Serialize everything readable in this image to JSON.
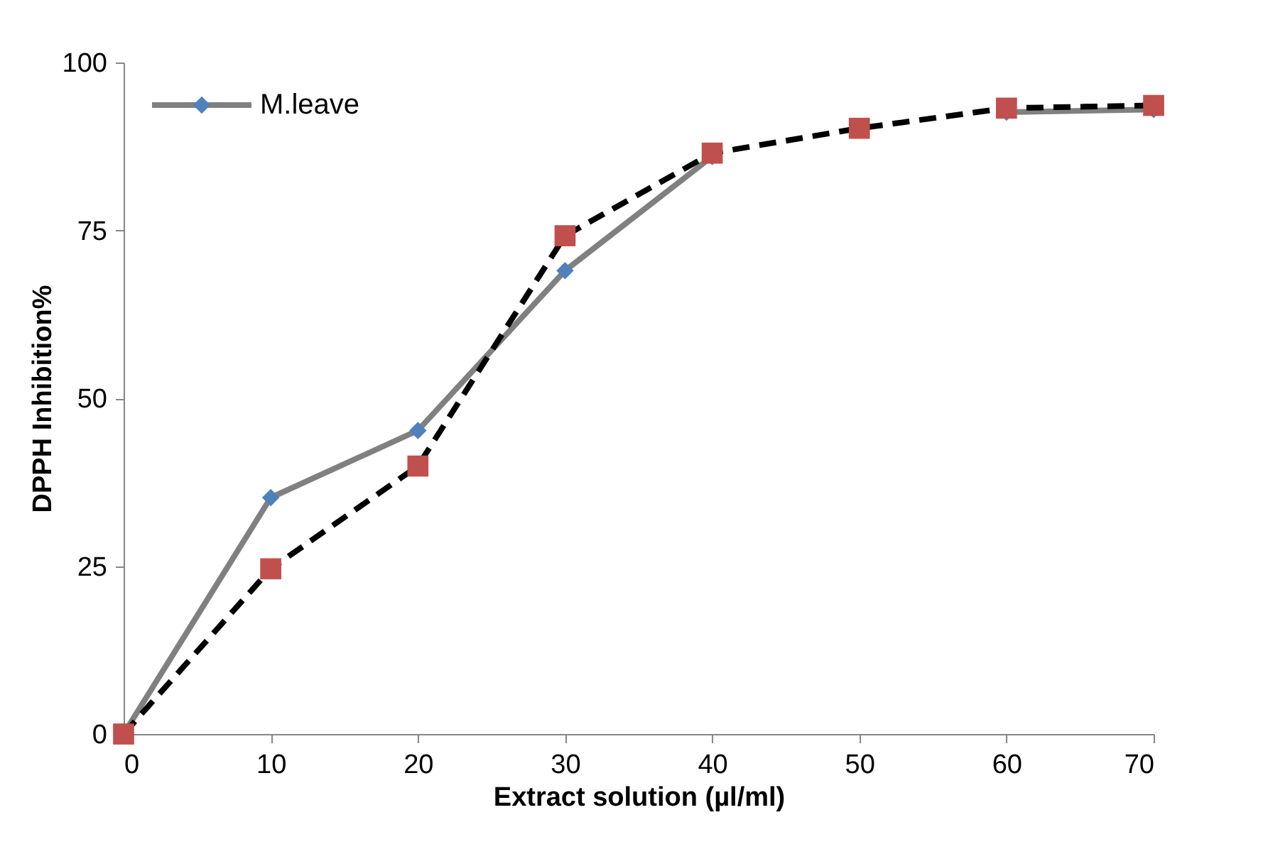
{
  "chart_data": {
    "type": "line",
    "xlabel": "Extract solution (µl/ml)",
    "ylabel": "DPPH Inhibition%",
    "x": [
      0,
      10,
      20,
      30,
      40,
      50,
      60,
      70
    ],
    "series": [
      {
        "name": "M.leave",
        "color": "#808080",
        "colors": [
          "#4f81bd",
          "#4f81bd",
          "#4f81bd",
          "#4f81bd",
          "#4f81bd",
          "#4f81bd",
          "#4f81bd",
          "#4f81bd"
        ],
        "marker": "diamond",
        "line_style": "solid",
        "values": [
          0,
          35.2,
          45.2,
          69.0,
          86.0,
          null,
          92.6,
          93.0
        ]
      },
      {
        "color": "#000000",
        "colors": [
          "#c0504d",
          "#c0504d",
          "#c0504d",
          "#c0504d",
          "#c0504d",
          "#c0504d",
          "#c0504d",
          "#c0504d"
        ],
        "marker": "square",
        "line_style": "dashed",
        "values": [
          0,
          24.6,
          39.9,
          74.2,
          86.5,
          90.2,
          93.2,
          93.6
        ]
      }
    ],
    "xlim": [
      0,
      70
    ],
    "xticks": [
      0,
      10,
      20,
      30,
      40,
      50,
      60,
      70
    ],
    "ylim": [
      0,
      100
    ],
    "yticks": [
      0,
      25,
      50,
      75,
      100
    ],
    "grid": false,
    "legend": "top left"
  }
}
